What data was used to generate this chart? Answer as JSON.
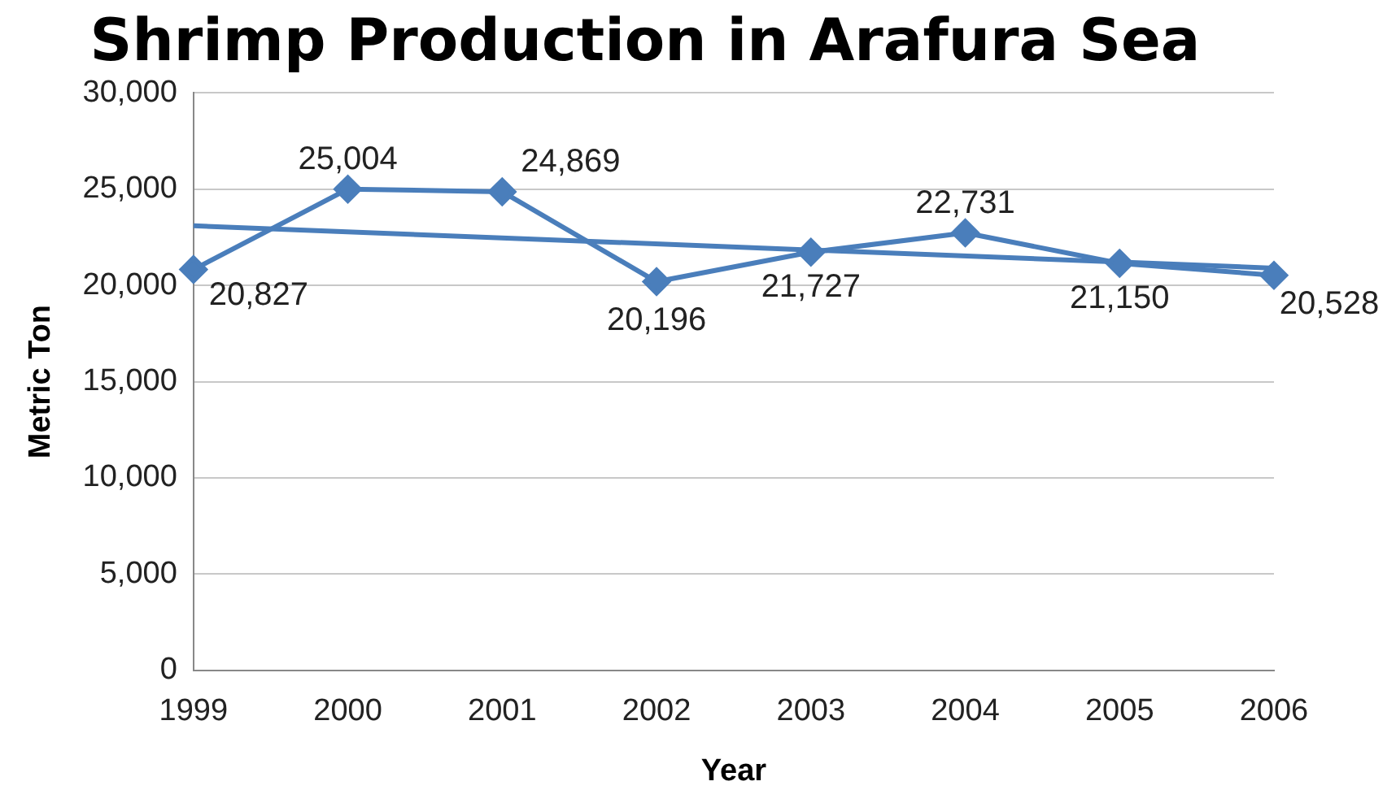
{
  "chart_data": {
    "type": "line",
    "title": "Shrimp Production in Arafura Sea",
    "xlabel": "Year",
    "ylabel": "Metric Ton",
    "categories": [
      "1999",
      "2000",
      "2001",
      "2002",
      "2003",
      "2004",
      "2005",
      "2006"
    ],
    "series": [
      {
        "color": "#4a7ebb",
        "values": [
          20827,
          25004,
          24869,
          20196,
          21727,
          22731,
          21150,
          20528
        ],
        "marker": "diamond",
        "value_labels": [
          "20,827",
          "25,004",
          "24,869",
          "20,196",
          "21,727",
          "22,731",
          "21,150",
          "20,528"
        ]
      },
      {
        "type": "line",
        "color": "#4a7ebb",
        "values": [
          23100,
          null,
          null,
          null,
          null,
          null,
          null,
          20900
        ],
        "marker": "none"
      }
    ],
    "ylim": [
      0,
      30000
    ],
    "yticks": [
      {
        "value": 0,
        "label": "0"
      },
      {
        "value": 5000,
        "label": "5,000"
      },
      {
        "value": 10000,
        "label": "10,000"
      },
      {
        "value": 15000,
        "label": "15,000"
      },
      {
        "value": 20000,
        "label": "20,000"
      },
      {
        "value": 25000,
        "label": "25,000"
      },
      {
        "value": 30000,
        "label": "30,000"
      }
    ],
    "grid": "y",
    "legend": false,
    "line_style": "solid"
  }
}
